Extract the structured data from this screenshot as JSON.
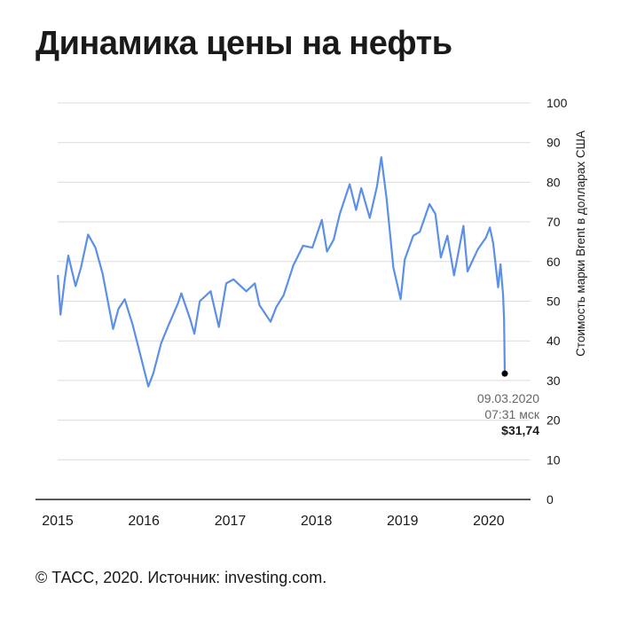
{
  "title": "Динамика цены на нефть",
  "footer": "© ТАСС, 2020. Источник: investing.com.",
  "colors": {
    "line": "#5b8fe8",
    "grid": "#dcdcdc",
    "text": "#1a1a1a",
    "annotation": "#666666",
    "point": "#000000"
  },
  "chart_data": {
    "type": "line",
    "title": "Динамика цены на нефть",
    "ylabel": "Стоимость марки Brent в долларах США",
    "xlabel": "",
    "ylim": [
      0,
      100
    ],
    "xlim": [
      "2015-01-01",
      "2020-03-09"
    ],
    "yticks": [
      0,
      10,
      20,
      30,
      40,
      50,
      60,
      70,
      80,
      90,
      100
    ],
    "xticks": [
      "2015",
      "2016",
      "2017",
      "2018",
      "2019",
      "2020"
    ],
    "grid": "horizontal",
    "x": [
      "2015-01-02",
      "2015-01-13",
      "2015-02-01",
      "2015-02-15",
      "2015-03-05",
      "2015-03-18",
      "2015-04-10",
      "2015-05-10",
      "2015-06-10",
      "2015-07-10",
      "2015-08-24",
      "2015-09-15",
      "2015-10-12",
      "2015-11-15",
      "2015-12-15",
      "2016-01-20",
      "2016-02-10",
      "2016-03-15",
      "2016-04-15",
      "2016-05-25",
      "2016-06-08",
      "2016-07-15",
      "2016-08-02",
      "2016-08-25",
      "2016-10-10",
      "2016-11-14",
      "2016-12-15",
      "2017-01-15",
      "2017-03-10",
      "2017-04-15",
      "2017-05-05",
      "2017-06-21",
      "2017-07-15",
      "2017-08-15",
      "2017-09-25",
      "2017-11-06",
      "2017-12-15",
      "2018-01-24",
      "2018-02-15",
      "2018-03-15",
      "2018-04-10",
      "2018-05-22",
      "2018-06-18",
      "2018-07-10",
      "2018-08-15",
      "2018-09-15",
      "2018-10-03",
      "2018-10-25",
      "2018-11-23",
      "2018-12-24",
      "2019-01-10",
      "2019-02-15",
      "2019-03-15",
      "2019-04-25",
      "2019-05-20",
      "2019-06-12",
      "2019-07-10",
      "2019-08-07",
      "2019-09-16",
      "2019-10-03",
      "2019-11-15",
      "2019-12-20",
      "2020-01-06",
      "2020-01-20",
      "2020-02-10",
      "2020-02-20",
      "2020-03-02",
      "2020-03-06",
      "2020-03-09"
    ],
    "series": [
      {
        "values": [
          56.4,
          46.6,
          55.8,
          61.5,
          57.0,
          53.8,
          58.5,
          66.8,
          63.5,
          57.0,
          43.0,
          48.0,
          50.5,
          44.0,
          37.0,
          28.5,
          31.8,
          39.5,
          44.0,
          49.5,
          52.0,
          45.5,
          41.8,
          50.0,
          52.5,
          43.5,
          54.5,
          55.5,
          52.5,
          54.5,
          49.0,
          44.8,
          48.5,
          51.5,
          59.0,
          64.0,
          63.5,
          70.5,
          62.5,
          65.5,
          72.0,
          79.5,
          73.0,
          78.5,
          71.0,
          79.0,
          86.3,
          76.0,
          58.5,
          50.5,
          60.5,
          66.5,
          67.5,
          74.5,
          72.0,
          61.0,
          66.5,
          56.5,
          69.0,
          57.5,
          63.0,
          66.0,
          68.6,
          64.5,
          53.5,
          59.3,
          51.5,
          45.3,
          31.7
        ]
      }
    ],
    "annotation": {
      "x": "2020-03-09",
      "y": 31.74,
      "date": "09.03.2020",
      "time": "07:31 мск",
      "value": "$31,74"
    }
  }
}
